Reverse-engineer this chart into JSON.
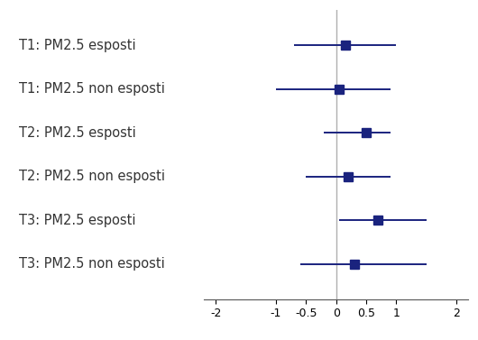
{
  "labels": [
    "T1: PM2.5 esposti",
    "T1: PM2.5 non esposti",
    "T2: PM2.5 esposti",
    "T2: PM2.5 non esposti",
    "T3: PM2.5 esposti",
    "T3: PM2.5 non esposti"
  ],
  "centers": [
    0.15,
    0.05,
    0.5,
    0.2,
    0.7,
    0.3
  ],
  "ci_low": [
    -0.7,
    -1.0,
    -0.2,
    -0.5,
    0.05,
    -0.6
  ],
  "ci_high": [
    1.0,
    0.9,
    0.9,
    0.9,
    1.5,
    1.5
  ],
  "marker_color": "#1a237e",
  "line_color": "#1a237e",
  "ref_line_color": "#b0b0b0",
  "ref_line_x": 0,
  "xlim": [
    -2.2,
    2.2
  ],
  "xticks": [
    -2,
    -1,
    -0.5,
    0,
    0.5,
    1,
    2
  ],
  "xtick_labels": [
    "-2",
    "-1",
    "-0.5",
    "0",
    "0.5",
    "1",
    "2"
  ],
  "background_color": "#ffffff",
  "marker_size": 7,
  "line_width": 1.4,
  "label_fontsize": 10.5,
  "tick_fontsize": 9
}
